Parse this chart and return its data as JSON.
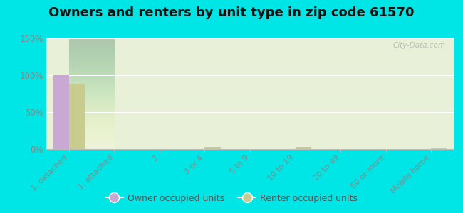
{
  "title": "Owners and renters by unit type in zip code 61570",
  "categories": [
    "1, detached",
    "1, attached",
    "2",
    "3 or 4",
    "5 to 9",
    "10 to 19",
    "20 to 49",
    "50 or more",
    "Mobile home"
  ],
  "owner_values": [
    100,
    0,
    0,
    0,
    0,
    0,
    0,
    0,
    0
  ],
  "renter_values": [
    88,
    0,
    0,
    3,
    0,
    3,
    0,
    0,
    1
  ],
  "owner_color": "#c9a8d4",
  "renter_color": "#c8cc8e",
  "background_color": "#00e5e5",
  "plot_bg_color": "#e8f0d8",
  "ylim": [
    0,
    150
  ],
  "yticks": [
    0,
    50,
    100,
    150
  ],
  "ytick_labels": [
    "0%",
    "50%",
    "100%",
    "150%"
  ],
  "watermark": "City-Data.com",
  "legend_owner": "Owner occupied units",
  "legend_renter": "Renter occupied units",
  "bar_width": 0.35,
  "title_fontsize": 13,
  "tick_color": "#888888",
  "grid_color": "#ffffff"
}
